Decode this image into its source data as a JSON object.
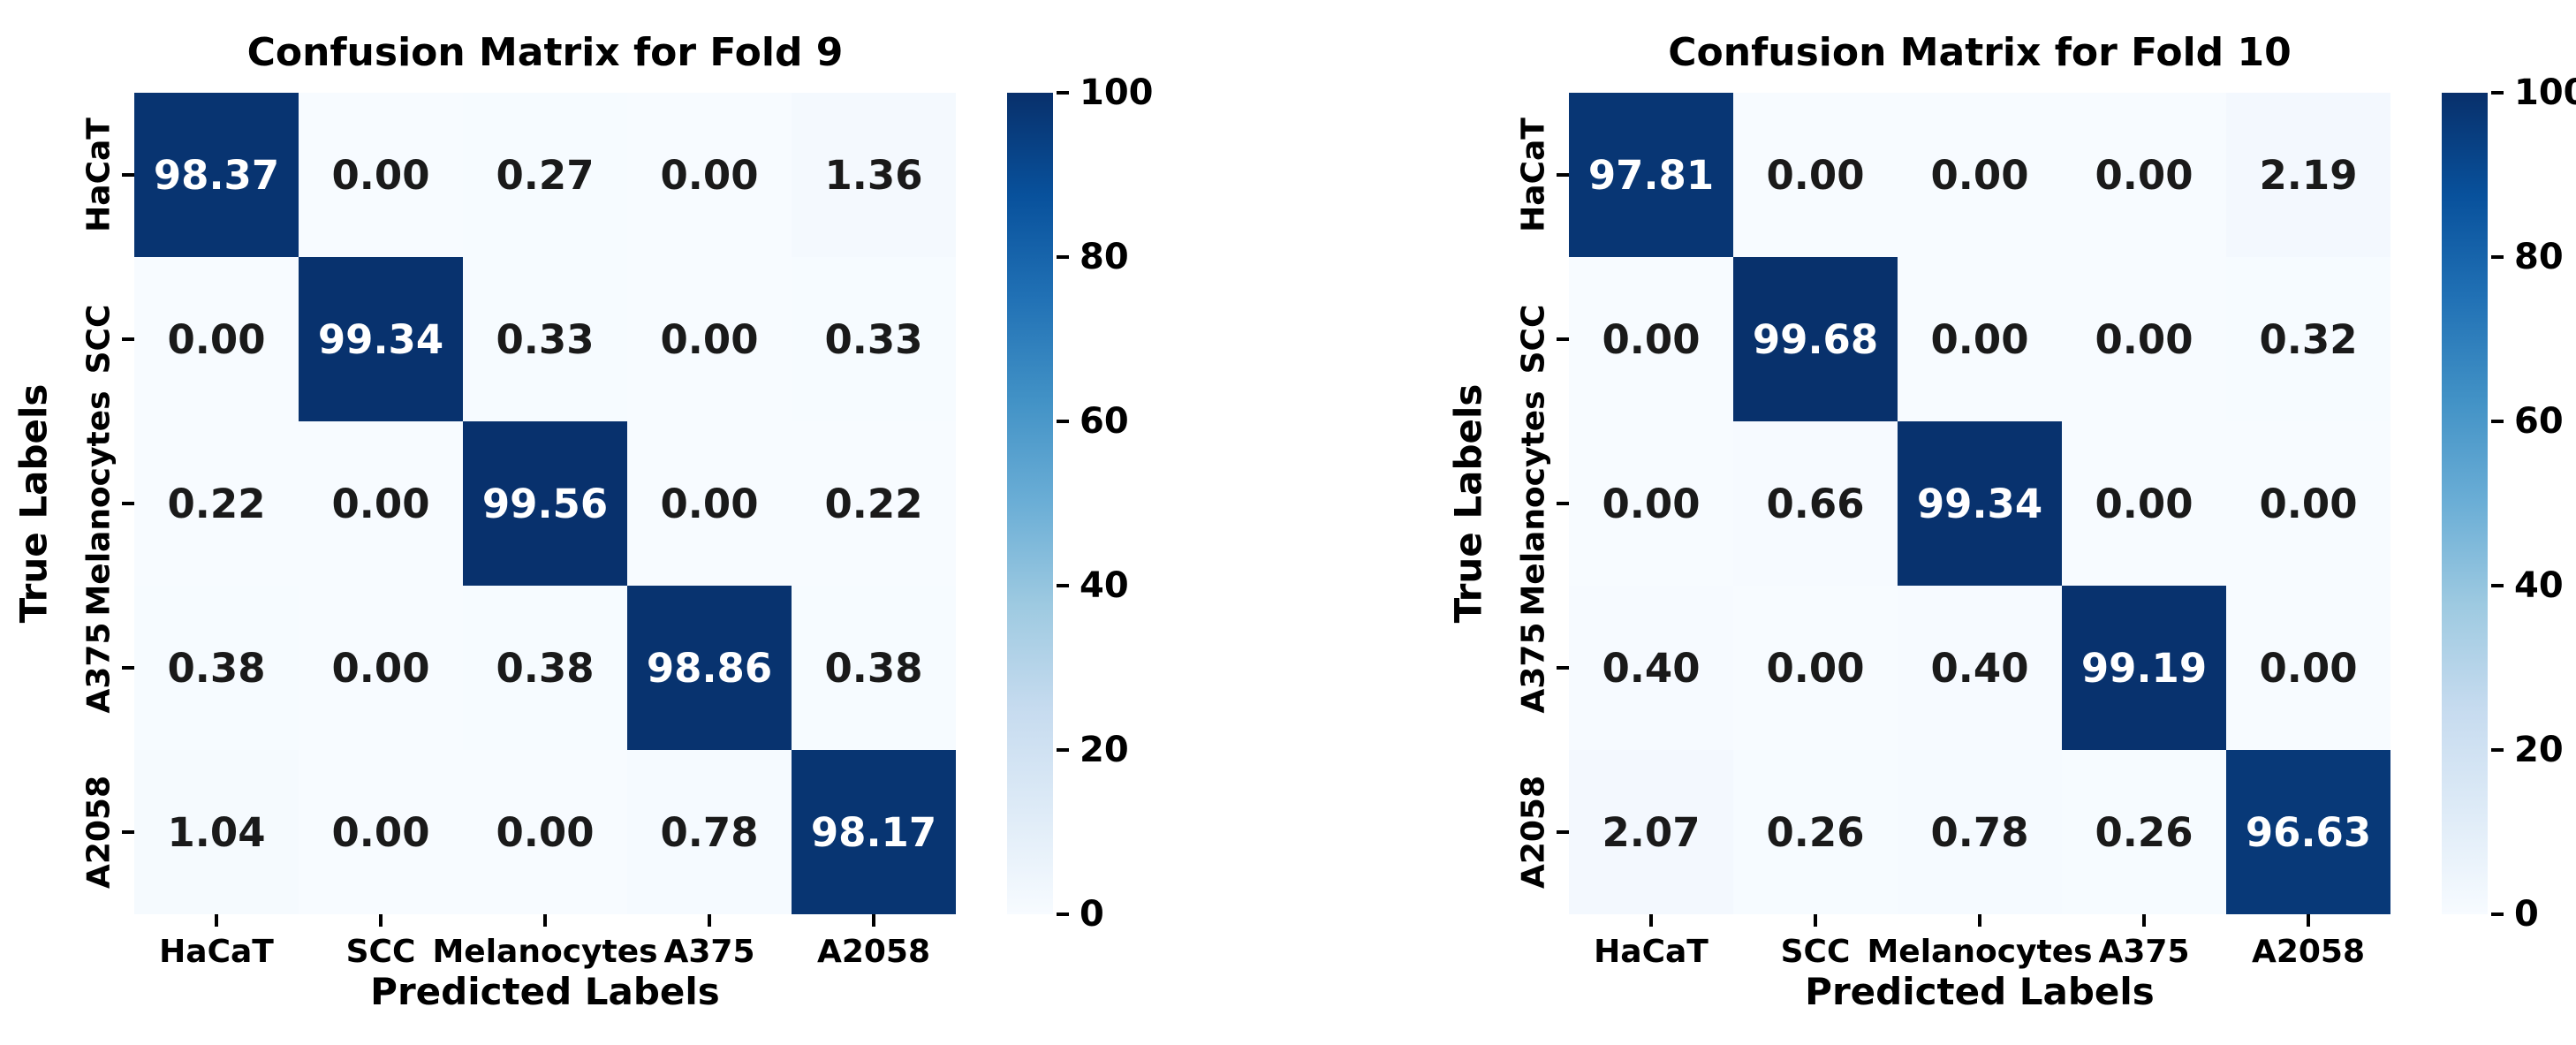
{
  "style": {
    "background": "#ffffff",
    "text_color": "#000000",
    "annotation_dark_text": "#1a1a1a",
    "annotation_light_text": "#ffffff",
    "colormap_name": "Blues",
    "colormap_stops": [
      {
        "t": 0,
        "color": "#f7fbff"
      },
      {
        "t": 0.125,
        "color": "#deebf7"
      },
      {
        "t": 0.25,
        "color": "#c6dbef"
      },
      {
        "t": 0.375,
        "color": "#9ecae1"
      },
      {
        "t": 0.5,
        "color": "#6baed6"
      },
      {
        "t": 0.625,
        "color": "#4292c6"
      },
      {
        "t": 0.75,
        "color": "#2171b5"
      },
      {
        "t": 0.875,
        "color": "#08519c"
      },
      {
        "t": 1,
        "color": "#08306b"
      }
    ]
  },
  "chart_data": [
    {
      "type": "heatmap",
      "title": "Confusion Matrix for Fold 9",
      "xlabel": "Predicted Labels",
      "ylabel": "True Labels",
      "x_categories": [
        "HaCaT",
        "SCC",
        "Melanocytes",
        "A375",
        "A2058"
      ],
      "y_categories": [
        "HaCaT",
        "SCC",
        "Melanocytes",
        "A375",
        "A2058"
      ],
      "values": [
        [
          98.37,
          0.0,
          0.27,
          0.0,
          1.36
        ],
        [
          0.0,
          99.34,
          0.33,
          0.0,
          0.33
        ],
        [
          0.22,
          0.0,
          99.56,
          0.0,
          0.22
        ],
        [
          0.38,
          0.0,
          0.38,
          98.86,
          0.38
        ],
        [
          1.04,
          0.0,
          0.0,
          0.78,
          98.17
        ]
      ],
      "value_decimals": 2,
      "grid": false,
      "colorbar": {
        "min": 0,
        "max": 100,
        "ticks": [
          0,
          20,
          40,
          60,
          80,
          100
        ],
        "position": "right"
      }
    },
    {
      "type": "heatmap",
      "title": "Confusion Matrix for Fold 10",
      "xlabel": "Predicted Labels",
      "ylabel": "True Labels",
      "x_categories": [
        "HaCaT",
        "SCC",
        "Melanocytes",
        "A375",
        "A2058"
      ],
      "y_categories": [
        "HaCaT",
        "SCC",
        "Melanocytes",
        "A375",
        "A2058"
      ],
      "values": [
        [
          97.81,
          0.0,
          0.0,
          0.0,
          2.19
        ],
        [
          0.0,
          99.68,
          0.0,
          0.0,
          0.32
        ],
        [
          0.0,
          0.66,
          99.34,
          0.0,
          0.0
        ],
        [
          0.4,
          0.0,
          0.4,
          99.19,
          0.0
        ],
        [
          2.07,
          0.26,
          0.78,
          0.26,
          96.63
        ]
      ],
      "value_decimals": 2,
      "grid": false,
      "colorbar": {
        "min": 0,
        "max": 100,
        "ticks": [
          0,
          20,
          40,
          60,
          80,
          100
        ],
        "position": "right"
      }
    }
  ]
}
